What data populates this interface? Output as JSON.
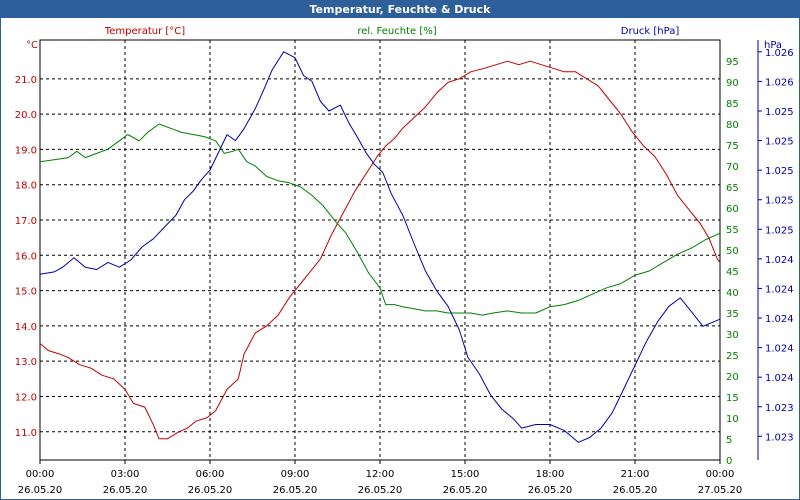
{
  "window": {
    "title": "Temperatur, Feuchte & Druck"
  },
  "colors": {
    "temperature": "#c00000",
    "humidity": "#008000",
    "pressure": "#0000aa",
    "titlebar": "#2f5f9a",
    "grid": "#000000"
  },
  "chart_data": {
    "type": "line",
    "title": "Temperatur, Feuchte & Druck",
    "x_range_hours": [
      0,
      24
    ],
    "x_ticks": [
      {
        "h": 0,
        "time": "00:00",
        "date": "26.05.20"
      },
      {
        "h": 3,
        "time": "03:00",
        "date": "26.05.20"
      },
      {
        "h": 6,
        "time": "06:00",
        "date": "26.05.20"
      },
      {
        "h": 9,
        "time": "09:00",
        "date": "26.05.20"
      },
      {
        "h": 12,
        "time": "12:00",
        "date": "26.05.20"
      },
      {
        "h": 15,
        "time": "15:00",
        "date": "26.05.20"
      },
      {
        "h": 18,
        "time": "18:00",
        "date": "26.05.20"
      },
      {
        "h": 21,
        "time": "21:00",
        "date": "26.05.20"
      },
      {
        "h": 24,
        "time": "00:00",
        "date": "27.05.20"
      }
    ],
    "axes": {
      "temperature": {
        "label": "Temperatur [°C]",
        "unit": "°C",
        "range": [
          10.2,
          22.1
        ],
        "ticks": [
          {
            "v": 11.0,
            "label": "11.0"
          },
          {
            "v": 12.0,
            "label": "12.0"
          },
          {
            "v": 13.0,
            "label": "13.0"
          },
          {
            "v": 14.0,
            "label": "14.0"
          },
          {
            "v": 15.0,
            "label": "15.0"
          },
          {
            "v": 16.0,
            "label": "16.0"
          },
          {
            "v": 17.0,
            "label": "17.0"
          },
          {
            "v": 18.0,
            "label": "18.0"
          },
          {
            "v": 19.0,
            "label": "19.0"
          },
          {
            "v": 20.0,
            "label": "20.0"
          },
          {
            "v": 21.0,
            "label": "21.0"
          }
        ]
      },
      "humidity": {
        "label": "rel. Feuchte [%]",
        "unit": "%",
        "range": [
          0,
          100
        ],
        "ticks": [
          {
            "v": 0,
            "label": "0"
          },
          {
            "v": 5,
            "label": "5"
          },
          {
            "v": 10,
            "label": "10"
          },
          {
            "v": 15,
            "label": "15"
          },
          {
            "v": 20,
            "label": "20"
          },
          {
            "v": 25,
            "label": "25"
          },
          {
            "v": 30,
            "label": "30"
          },
          {
            "v": 35,
            "label": "35"
          },
          {
            "v": 40,
            "label": "40"
          },
          {
            "v": 45,
            "label": "45"
          },
          {
            "v": 50,
            "label": "50"
          },
          {
            "v": 55,
            "label": "55"
          },
          {
            "v": 60,
            "label": "60"
          },
          {
            "v": 65,
            "label": "65"
          },
          {
            "v": 70,
            "label": "70"
          },
          {
            "v": 75,
            "label": "75"
          },
          {
            "v": 80,
            "label": "80"
          },
          {
            "v": 85,
            "label": "85"
          },
          {
            "v": 90,
            "label": "90"
          },
          {
            "v": 95,
            "label": "95"
          }
        ]
      },
      "pressure": {
        "label": "Druck [hPa]",
        "unit": "hPa",
        "range": [
          1022.75,
          1026.3
        ],
        "ticks": [
          {
            "v": 1022.95,
            "label": "1.023"
          },
          {
            "v": 1023.2,
            "label": "1.023"
          },
          {
            "v": 1023.45,
            "label": "1.024"
          },
          {
            "v": 1023.7,
            "label": "1.024"
          },
          {
            "v": 1023.95,
            "label": "1.024"
          },
          {
            "v": 1024.2,
            "label": "1.024"
          },
          {
            "v": 1024.45,
            "label": "1.024"
          },
          {
            "v": 1024.7,
            "label": "1.025"
          },
          {
            "v": 1024.95,
            "label": "1.025"
          },
          {
            "v": 1025.2,
            "label": "1.025"
          },
          {
            "v": 1025.45,
            "label": "1.025"
          },
          {
            "v": 1025.7,
            "label": "1.025"
          },
          {
            "v": 1025.95,
            "label": "1.026"
          },
          {
            "v": 1026.2,
            "label": "1.026"
          }
        ]
      }
    },
    "series": [
      {
        "name": "Temperatur [°C]",
        "axis": "temperature",
        "points": [
          [
            0,
            13.5
          ],
          [
            0.3,
            13.3
          ],
          [
            0.7,
            13.2
          ],
          [
            1.0,
            13.1
          ],
          [
            1.4,
            12.9
          ],
          [
            1.8,
            12.8
          ],
          [
            2.2,
            12.6
          ],
          [
            2.6,
            12.5
          ],
          [
            3.0,
            12.2
          ],
          [
            3.3,
            11.8
          ],
          [
            3.7,
            11.7
          ],
          [
            4.0,
            11.2
          ],
          [
            4.2,
            10.8
          ],
          [
            4.5,
            10.8
          ],
          [
            4.9,
            11.0
          ],
          [
            5.2,
            11.1
          ],
          [
            5.5,
            11.3
          ],
          [
            5.9,
            11.4
          ],
          [
            6.2,
            11.6
          ],
          [
            6.6,
            12.2
          ],
          [
            7.0,
            12.5
          ],
          [
            7.2,
            13.2
          ],
          [
            7.6,
            13.8
          ],
          [
            8.0,
            14.0
          ],
          [
            8.4,
            14.3
          ],
          [
            8.8,
            14.8
          ],
          [
            9.2,
            15.2
          ],
          [
            9.5,
            15.5
          ],
          [
            9.9,
            15.9
          ],
          [
            10.3,
            16.6
          ],
          [
            10.7,
            17.2
          ],
          [
            11.1,
            17.8
          ],
          [
            11.5,
            18.3
          ],
          [
            11.9,
            18.8
          ],
          [
            12.2,
            19.1
          ],
          [
            12.5,
            19.3
          ],
          [
            12.8,
            19.6
          ],
          [
            13.2,
            19.9
          ],
          [
            13.6,
            20.2
          ],
          [
            14.0,
            20.6
          ],
          [
            14.4,
            20.9
          ],
          [
            14.8,
            21.0
          ],
          [
            15.2,
            21.2
          ],
          [
            15.7,
            21.3
          ],
          [
            16.1,
            21.4
          ],
          [
            16.5,
            21.5
          ],
          [
            16.9,
            21.4
          ],
          [
            17.3,
            21.5
          ],
          [
            17.7,
            21.4
          ],
          [
            18.1,
            21.3
          ],
          [
            18.5,
            21.2
          ],
          [
            18.9,
            21.2
          ],
          [
            19.3,
            21.0
          ],
          [
            19.7,
            20.8
          ],
          [
            20.1,
            20.4
          ],
          [
            20.5,
            20.0
          ],
          [
            20.9,
            19.5
          ],
          [
            21.3,
            19.1
          ],
          [
            21.7,
            18.8
          ],
          [
            22.1,
            18.3
          ],
          [
            22.5,
            17.7
          ],
          [
            22.9,
            17.3
          ],
          [
            23.3,
            16.9
          ],
          [
            23.6,
            16.5
          ],
          [
            23.9,
            15.9
          ],
          [
            24.0,
            15.8
          ]
        ]
      },
      {
        "name": "rel. Feuchte [%]",
        "axis": "humidity",
        "points": [
          [
            0,
            71
          ],
          [
            0.5,
            71.5
          ],
          [
            1.0,
            72
          ],
          [
            1.3,
            73.5
          ],
          [
            1.6,
            72
          ],
          [
            2.0,
            73
          ],
          [
            2.4,
            74
          ],
          [
            2.8,
            76
          ],
          [
            3.1,
            77.5
          ],
          [
            3.5,
            76
          ],
          [
            3.8,
            78
          ],
          [
            4.2,
            80
          ],
          [
            4.6,
            79
          ],
          [
            5.0,
            78
          ],
          [
            5.4,
            77.5
          ],
          [
            5.8,
            77
          ],
          [
            6.2,
            76
          ],
          [
            6.5,
            73
          ],
          [
            6.8,
            73.5
          ],
          [
            7.0,
            74
          ],
          [
            7.3,
            71
          ],
          [
            7.6,
            70
          ],
          [
            8.0,
            67.5
          ],
          [
            8.4,
            66.5
          ],
          [
            8.8,
            66
          ],
          [
            9.2,
            65
          ],
          [
            9.6,
            63
          ],
          [
            10.0,
            60.5
          ],
          [
            10.4,
            57
          ],
          [
            10.8,
            54
          ],
          [
            11.2,
            49.5
          ],
          [
            11.6,
            44.5
          ],
          [
            12.0,
            41
          ],
          [
            12.2,
            37
          ],
          [
            12.5,
            37
          ],
          [
            12.8,
            36.5
          ],
          [
            13.2,
            36
          ],
          [
            13.6,
            35.5
          ],
          [
            14.0,
            35.5
          ],
          [
            14.4,
            35
          ],
          [
            14.8,
            35
          ],
          [
            15.2,
            35
          ],
          [
            15.6,
            34.5
          ],
          [
            16.0,
            35
          ],
          [
            16.5,
            35.5
          ],
          [
            17.0,
            35
          ],
          [
            17.5,
            35
          ],
          [
            18.0,
            36.5
          ],
          [
            18.5,
            37
          ],
          [
            19.0,
            38
          ],
          [
            19.5,
            39.5
          ],
          [
            20.0,
            41
          ],
          [
            20.5,
            42
          ],
          [
            21.0,
            44
          ],
          [
            21.5,
            45
          ],
          [
            22.0,
            47
          ],
          [
            22.5,
            49
          ],
          [
            23.0,
            50.5
          ],
          [
            23.5,
            52.5
          ],
          [
            24.0,
            54
          ]
        ]
      },
      {
        "name": "Druck [hPa]",
        "axis": "pressure",
        "points": [
          [
            0,
            1024.32
          ],
          [
            0.5,
            1024.34
          ],
          [
            0.8,
            1024.38
          ],
          [
            1.2,
            1024.46
          ],
          [
            1.6,
            1024.38
          ],
          [
            2.0,
            1024.36
          ],
          [
            2.4,
            1024.42
          ],
          [
            2.8,
            1024.38
          ],
          [
            3.2,
            1024.44
          ],
          [
            3.6,
            1024.55
          ],
          [
            4.0,
            1024.62
          ],
          [
            4.4,
            1024.72
          ],
          [
            4.8,
            1024.82
          ],
          [
            5.1,
            1024.95
          ],
          [
            5.4,
            1025.02
          ],
          [
            5.7,
            1025.12
          ],
          [
            6.0,
            1025.2
          ],
          [
            6.3,
            1025.35
          ],
          [
            6.6,
            1025.5
          ],
          [
            6.9,
            1025.45
          ],
          [
            7.2,
            1025.55
          ],
          [
            7.6,
            1025.72
          ],
          [
            7.9,
            1025.88
          ],
          [
            8.2,
            1026.05
          ],
          [
            8.6,
            1026.2
          ],
          [
            9.0,
            1026.15
          ],
          [
            9.3,
            1026.0
          ],
          [
            9.6,
            1025.95
          ],
          [
            9.9,
            1025.78
          ],
          [
            10.2,
            1025.7
          ],
          [
            10.6,
            1025.75
          ],
          [
            10.9,
            1025.6
          ],
          [
            11.2,
            1025.48
          ],
          [
            11.5,
            1025.35
          ],
          [
            11.8,
            1025.25
          ],
          [
            12.1,
            1025.18
          ],
          [
            12.4,
            1025.0
          ],
          [
            12.8,
            1024.82
          ],
          [
            13.2,
            1024.58
          ],
          [
            13.6,
            1024.35
          ],
          [
            14.0,
            1024.18
          ],
          [
            14.4,
            1024.05
          ],
          [
            14.8,
            1023.85
          ],
          [
            15.1,
            1023.62
          ],
          [
            15.5,
            1023.48
          ],
          [
            15.9,
            1023.3
          ],
          [
            16.3,
            1023.18
          ],
          [
            16.7,
            1023.1
          ],
          [
            17.0,
            1023.02
          ],
          [
            17.5,
            1023.05
          ],
          [
            18.0,
            1023.05
          ],
          [
            18.5,
            1023.0
          ],
          [
            19.0,
            1022.9
          ],
          [
            19.4,
            1022.94
          ],
          [
            19.8,
            1023.02
          ],
          [
            20.2,
            1023.15
          ],
          [
            20.6,
            1023.35
          ],
          [
            21.0,
            1023.55
          ],
          [
            21.4,
            1023.75
          ],
          [
            21.8,
            1023.92
          ],
          [
            22.2,
            1024.05
          ],
          [
            22.6,
            1024.12
          ],
          [
            23.0,
            1024.0
          ],
          [
            23.4,
            1023.88
          ],
          [
            23.8,
            1023.92
          ],
          [
            24.0,
            1023.94
          ]
        ]
      }
    ]
  }
}
